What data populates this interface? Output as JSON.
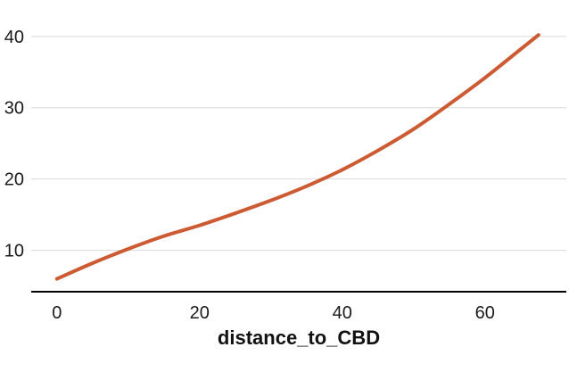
{
  "chart_data": {
    "type": "line",
    "title": "",
    "xlabel": "distance_to_CBD",
    "ylabel": "",
    "xlim": [
      -3.6,
      71.4
    ],
    "ylim": [
      4.2,
      42.6
    ],
    "x_ticks": [
      0,
      20,
      40,
      60
    ],
    "y_ticks": [
      10,
      20,
      30,
      40
    ],
    "grid": "horizontal",
    "legend": "none",
    "line_color": "#cc5a32",
    "grid_color": "#d9d9d9",
    "axis_color": "#000000",
    "series": [
      {
        "x": [
          0,
          5,
          10,
          15,
          20,
          25,
          30,
          35,
          40,
          45,
          50,
          55,
          60,
          65,
          67.5
        ],
        "values": [
          6.0,
          8.2,
          10.2,
          12.0,
          13.5,
          15.2,
          17.0,
          19.0,
          21.3,
          24.0,
          27.0,
          30.5,
          34.2,
          38.2,
          40.2
        ]
      }
    ]
  }
}
